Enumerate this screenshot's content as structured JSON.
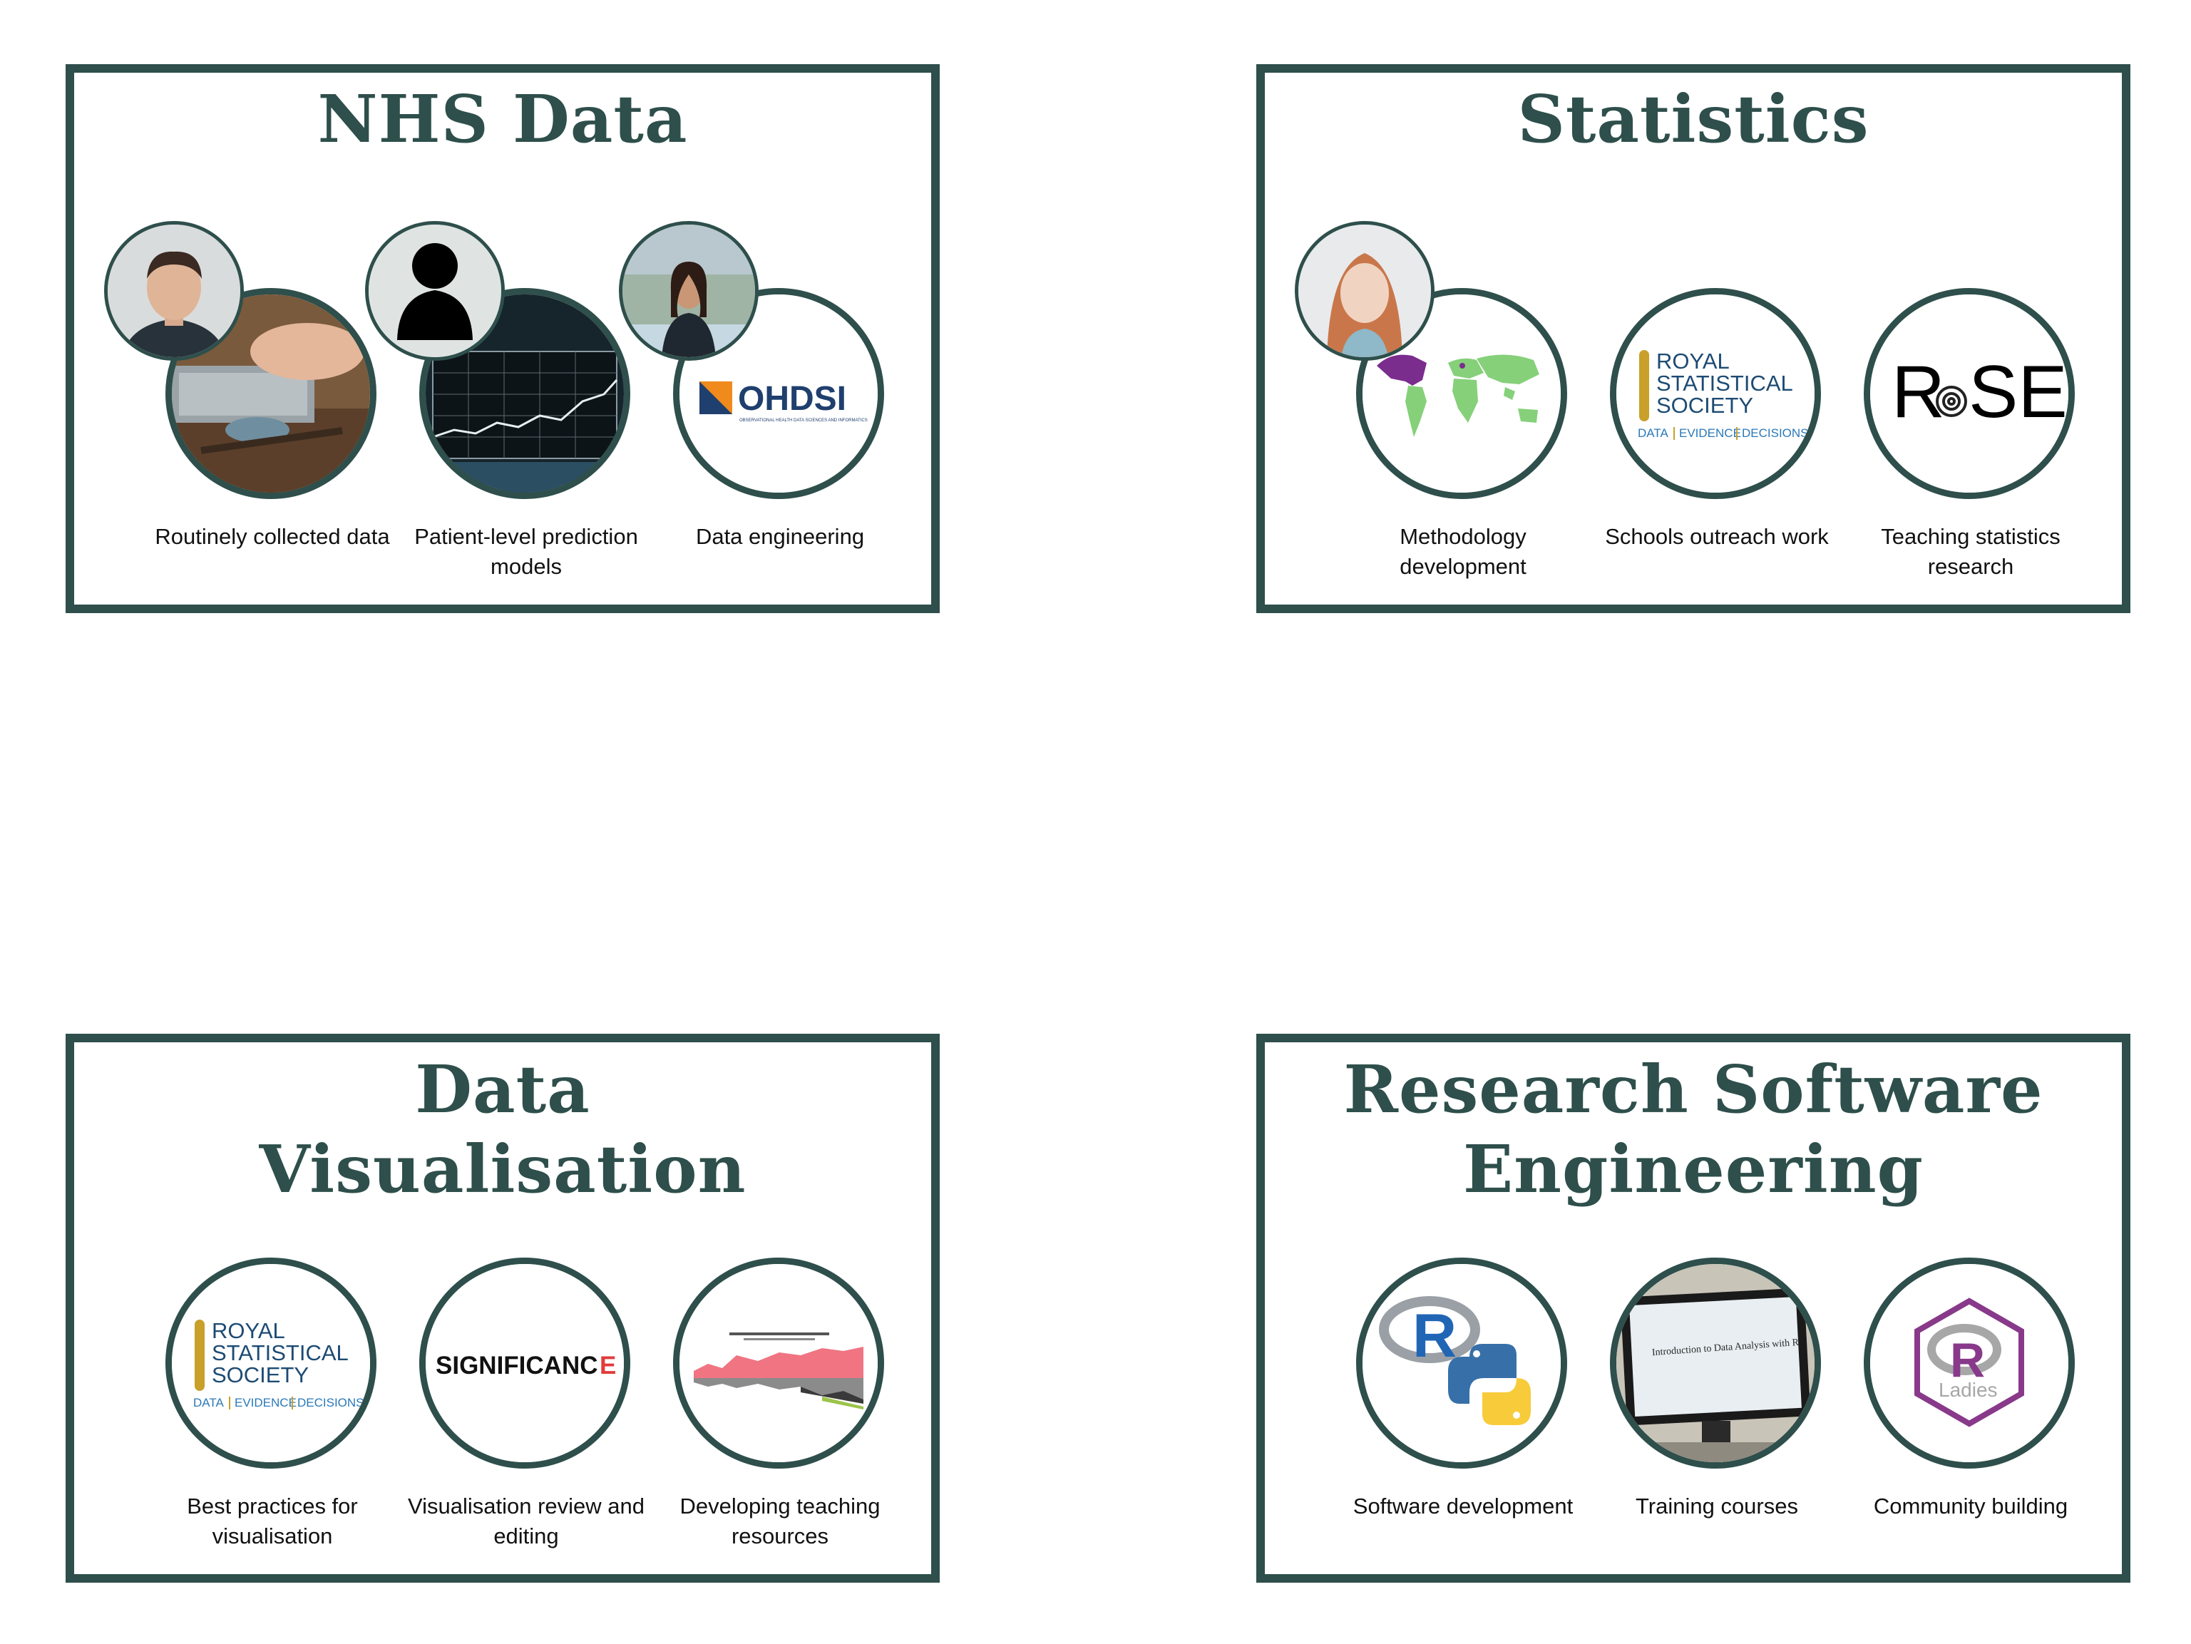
{
  "panels": {
    "nhs": {
      "title": "NHS Data",
      "items": [
        {
          "label": "Routinely collected data"
        },
        {
          "label": "Patient-level prediction models"
        },
        {
          "label": "Data engineering"
        }
      ],
      "ohdsi": {
        "wordmark": "OHDSI",
        "tagline": "OBSERVATIONAL HEALTH DATA SCIENCES AND INFORMATICS"
      }
    },
    "stats": {
      "title": "Statistics",
      "items": [
        {
          "label": "Methodology development"
        },
        {
          "label": "Schools outreach work"
        },
        {
          "label": "Teaching statistics research"
        }
      ],
      "rss": {
        "line1": "ROYAL",
        "line2": "STATISTICAL",
        "line3": "SOCIETY",
        "tag1": "DATA",
        "tag2": "EVIDENCE",
        "tag3": "DECISIONS"
      },
      "rose": {
        "left": "R",
        "right": "SE"
      }
    },
    "vis": {
      "title_line1": "Data",
      "title_line2": "Visualisation",
      "items": [
        {
          "label": "Best practices for visualisation"
        },
        {
          "label": "Visualisation review and editing"
        },
        {
          "label": "Developing teaching resources"
        }
      ],
      "rss": {
        "line1": "ROYAL",
        "line2": "STATISTICAL",
        "line3": "SOCIETY",
        "tag1": "DATA",
        "tag2": "EVIDENCE",
        "tag3": "DECISIONS"
      },
      "significance": {
        "main": "SIGNIFICANC",
        "last": "E"
      }
    },
    "rse": {
      "title_line1": "Research Software",
      "title_line2": "Engineering",
      "items": [
        {
          "label": "Software development"
        },
        {
          "label": "Training courses"
        },
        {
          "label": "Community building"
        }
      ],
      "screen_text": "Introduction to Data Analysis with R",
      "rladies": {
        "letter": "R",
        "word": "Ladies"
      }
    }
  },
  "colors": {
    "border": "#2e4f4b",
    "rss_gold": "#c8a02a",
    "rss_navy": "#1d4b73",
    "ohdsi_orange": "#f08a1c",
    "ohdsi_blue": "#1f3f6e",
    "rladies_purple": "#88398a",
    "r_blue": "#2166b5",
    "py_yellow": "#f7cb3a"
  }
}
